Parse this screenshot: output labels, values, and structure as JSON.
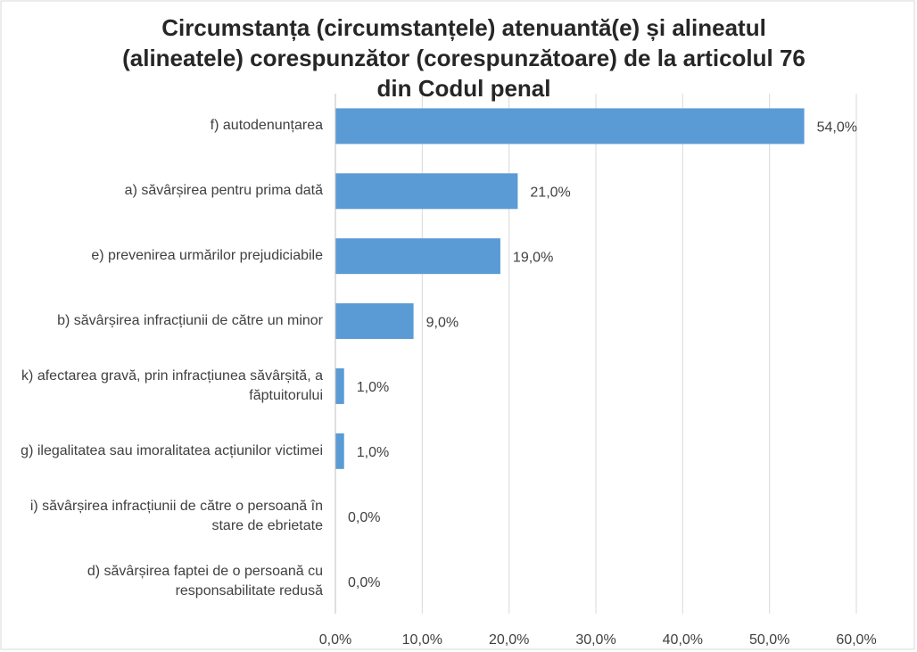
{
  "chart_data": {
    "type": "barh",
    "title": "Circumstanța (circumstanțele) atenuantă(e) și alineatul (alineatele) corespunzător (corespunzătoare) de la articolul 76 din Codul penal",
    "categories": [
      "f) autodenunțarea",
      "a) săvârșirea pentru prima dată",
      "e) prevenirea urmărilor prejudiciabile",
      "b) săvârșirea infracțiunii de către un minor",
      "k) afectarea gravă, prin infracțiunea săvârșită, a făptuitorului",
      "g) ilegalitatea sau imoralitatea acțiunilor victimei",
      "i) săvârșirea infracțiunii de către o persoană în stare de ebrietate",
      "d) săvârșirea faptei de o persoană cu responsabilitate redusă"
    ],
    "values": [
      54,
      21,
      19,
      9,
      1,
      1,
      0,
      0
    ],
    "value_labels": [
      "54,0%",
      "21,0%",
      "19,0%",
      "9,0%",
      "1,0%",
      "1,0%",
      "0,0%",
      "0,0%"
    ],
    "color": "#5b9bd5",
    "xlim": [
      0,
      60
    ],
    "xticks": [
      {
        "value": 0,
        "label": "0,0%"
      },
      {
        "value": 10,
        "label": "10,0%"
      },
      {
        "value": 20,
        "label": "20,0%"
      },
      {
        "value": 30,
        "label": "30,0%"
      },
      {
        "value": 40,
        "label": "40,0%"
      },
      {
        "value": 50,
        "label": "50,0%"
      },
      {
        "value": 60,
        "label": "60,0%"
      }
    ],
    "grid": true
  }
}
